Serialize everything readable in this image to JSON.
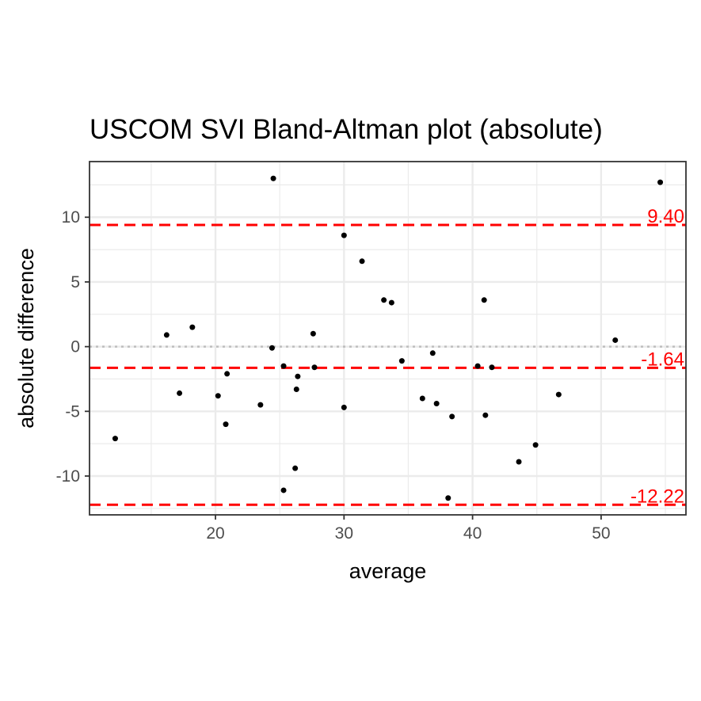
{
  "chart_data": {
    "type": "scatter",
    "title": "USCOM SVI   Bland-Altman plot (absolute)",
    "xlabel": "average",
    "ylabel": "absolute difference",
    "xlim": [
      10.2,
      56.6
    ],
    "ylim": [
      -13.0,
      14.3
    ],
    "x_ticks": [
      20,
      30,
      40,
      50
    ],
    "y_ticks": [
      -10,
      -5,
      0,
      5,
      10
    ],
    "x_tick_labels": [
      "20",
      "30",
      "40",
      "50"
    ],
    "y_tick_labels": [
      "-10",
      "-5",
      "0",
      "5",
      "10"
    ],
    "grid": true,
    "zero_line": 0,
    "reference_lines": [
      {
        "value": 9.4,
        "label": "9.40",
        "color": "#ff0000"
      },
      {
        "value": -1.64,
        "label": "-1.64",
        "color": "#ff0000"
      },
      {
        "value": -12.22,
        "label": "-12.22",
        "color": "#ff0000"
      }
    ],
    "points": [
      {
        "x": 12.2,
        "y": -7.1
      },
      {
        "x": 16.2,
        "y": 0.9
      },
      {
        "x": 17.2,
        "y": -3.6
      },
      {
        "x": 18.2,
        "y": 1.5
      },
      {
        "x": 20.2,
        "y": -3.8
      },
      {
        "x": 20.8,
        "y": -6.0
      },
      {
        "x": 20.9,
        "y": -2.1
      },
      {
        "x": 23.5,
        "y": -4.5
      },
      {
        "x": 24.4,
        "y": -0.1
      },
      {
        "x": 24.5,
        "y": 13.0
      },
      {
        "x": 25.3,
        "y": -11.1
      },
      {
        "x": 25.3,
        "y": -1.5
      },
      {
        "x": 26.2,
        "y": -9.4
      },
      {
        "x": 26.3,
        "y": -3.3
      },
      {
        "x": 26.4,
        "y": -2.3
      },
      {
        "x": 27.6,
        "y": 1.0
      },
      {
        "x": 27.7,
        "y": -1.6
      },
      {
        "x": 30.0,
        "y": 8.6
      },
      {
        "x": 30.0,
        "y": -4.7
      },
      {
        "x": 31.4,
        "y": 6.6
      },
      {
        "x": 33.1,
        "y": 3.6
      },
      {
        "x": 33.7,
        "y": 3.4
      },
      {
        "x": 34.5,
        "y": -1.1
      },
      {
        "x": 36.1,
        "y": -4.0
      },
      {
        "x": 36.9,
        "y": -0.5
      },
      {
        "x": 37.2,
        "y": -4.4
      },
      {
        "x": 38.1,
        "y": -11.7
      },
      {
        "x": 38.4,
        "y": -5.4
      },
      {
        "x": 40.4,
        "y": -1.5
      },
      {
        "x": 40.9,
        "y": 3.6
      },
      {
        "x": 41.0,
        "y": -5.3
      },
      {
        "x": 41.5,
        "y": -1.6
      },
      {
        "x": 43.6,
        "y": -8.9
      },
      {
        "x": 44.9,
        "y": -7.6
      },
      {
        "x": 46.7,
        "y": -3.7
      },
      {
        "x": 51.1,
        "y": 0.5
      },
      {
        "x": 54.6,
        "y": 12.7
      }
    ]
  }
}
